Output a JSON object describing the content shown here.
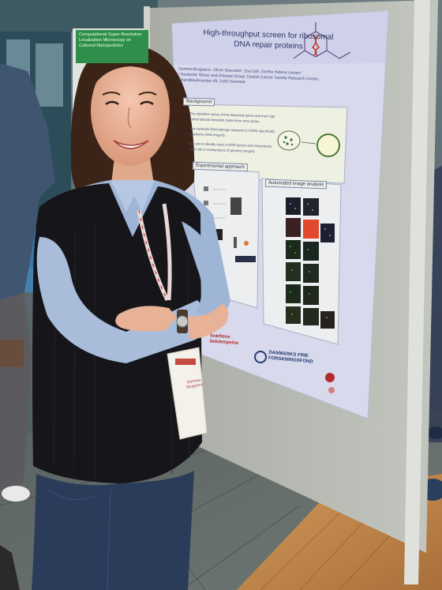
{
  "poster": {
    "title": "High-throughput screen for ribosomal DNA repair proteins",
    "authors": "Gemma Bruguera¹, Oliver Quevedo¹, Zsa Gál¹, Dorthe Helena Larsen¹",
    "affiliation": "¹ Nucleolar Stress and Disease Group, Danish Cancer Society Research Center, Strandboulevarden 49, 2100 Denmark",
    "section_background": "Background",
    "section_experimental": "Experimental approach",
    "section_image_analysis": "Automated image analysis",
    "background_points": [
      "The repetitive nature of the ribosomal genes and their high transcriptional demands make them error-prone.",
      "The nucleolar DNA damage response (n-DDR) specifically maintains rDNA integrity.",
      "We aim to identify novel n-DDR factors and characterize their role in maintenance of genome integrity."
    ],
    "logo_left": "kræftens bekæmpelse",
    "logo_right": "DANMARKS FRIE FORSKNINGSFOND"
  },
  "banner": {
    "text": "Computational Super-Resolution Localization Microscopy on Cultured Nanoparticles"
  },
  "badge": {
    "name": "Gemma Bruguera"
  },
  "colors": {
    "poster_bg": "#d8d9ec",
    "board": "#b9bcb4",
    "vest": "#16161a",
    "shirt": "#9fb5d6",
    "jeans": "#2b3c5a",
    "floor_wood": "#c18a4f"
  }
}
